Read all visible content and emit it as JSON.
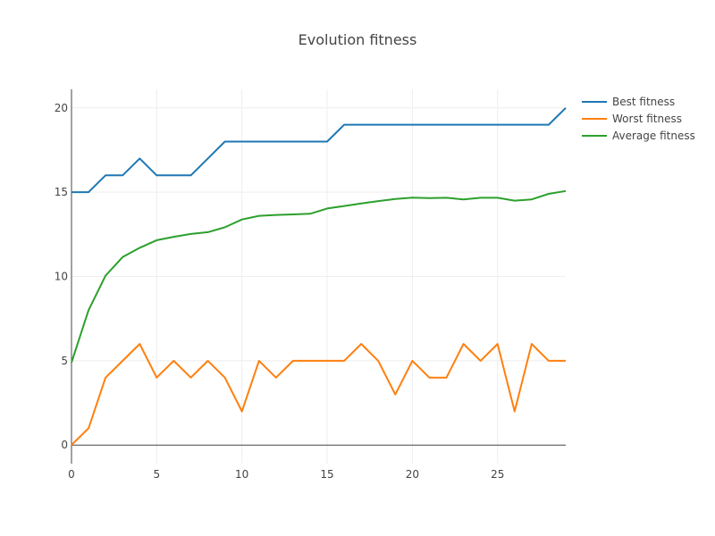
{
  "chart_data": {
    "type": "line",
    "title": "Evolution fitness",
    "xlabel": "",
    "ylabel": "",
    "xlim": [
      0,
      29
    ],
    "ylim": [
      -1.1,
      21.1
    ],
    "x_ticks": [
      0,
      5,
      10,
      15,
      20,
      25
    ],
    "y_ticks": [
      0,
      5,
      10,
      15,
      20
    ],
    "grid": true,
    "legend_position": "top-right",
    "x": [
      0,
      1,
      2,
      3,
      4,
      5,
      6,
      7,
      8,
      9,
      10,
      11,
      12,
      13,
      14,
      15,
      16,
      17,
      18,
      19,
      20,
      21,
      22,
      23,
      24,
      25,
      26,
      27,
      28,
      29
    ],
    "series": [
      {
        "name": "Best fitness",
        "color": "#1f77b4",
        "values": [
          15,
          15,
          16,
          16,
          17,
          16,
          16,
          16,
          17,
          18,
          18,
          18,
          18,
          18,
          18,
          18,
          19,
          19,
          19,
          19,
          19,
          19,
          19,
          19,
          19,
          19,
          19,
          19,
          19,
          20
        ]
      },
      {
        "name": "Worst fitness",
        "color": "#ff7f0e",
        "values": [
          0,
          1,
          4,
          5,
          6,
          4,
          5,
          4,
          5,
          4,
          2,
          5,
          4,
          5,
          5,
          5,
          5,
          6,
          5,
          3,
          5,
          4,
          4,
          6,
          5,
          6,
          2,
          6,
          5,
          5
        ]
      },
      {
        "name": "Average fitness",
        "color": "#2ca02c",
        "values": [
          4.9,
          8.0,
          10.05,
          11.15,
          11.7,
          12.15,
          12.35,
          12.52,
          12.63,
          12.92,
          13.38,
          13.6,
          13.65,
          13.68,
          13.72,
          14.03,
          14.18,
          14.33,
          14.47,
          14.6,
          14.68,
          14.65,
          14.67,
          14.57,
          14.67,
          14.67,
          14.5,
          14.57,
          14.9,
          15.07
        ]
      }
    ]
  }
}
